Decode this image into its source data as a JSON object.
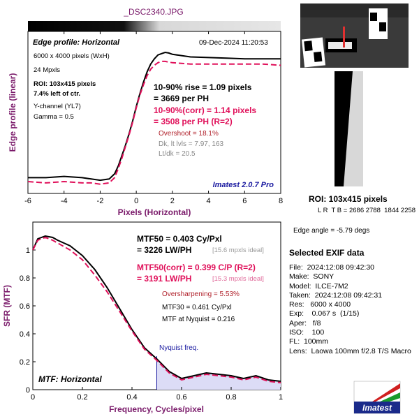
{
  "filename": "_DSC2340.JPG",
  "colors": {
    "measured": "#000000",
    "corrected": "#e0105a",
    "label_purple": "#7a1a6a",
    "accent_blue": "#1a1aa0",
    "nyquist_fill": "#dcdcf6"
  },
  "edge_panel": {
    "title": "Edge profile: Horizontal",
    "timestamp": "09-Dec-2024 11:20:53",
    "info": [
      "6000 x 4000 pixels (WxH)",
      "24 Mpxls"
    ],
    "roi_lines": [
      "ROI: 103x415 pixels",
      "7.4% left of ctr."
    ],
    "channel_lines": [
      "Y-channel  (YL7)",
      "Gamma = 0.5"
    ],
    "rise_lines": [
      "10-90% rise = 1.09 pixels",
      "= 3669 per PH"
    ],
    "corr_lines": [
      "10-90%(corr) = 1.14 pixels",
      "= 3508 per PH  (R=2)"
    ],
    "overshoot": "Overshoot = 18.1%",
    "dk_lt": "Dk, lt lvls = 7.97, 163",
    "lt_dk": "Lt/dk = 20.5",
    "version": "Imatest 2.0.7 Pro"
  },
  "mtf_panel": {
    "mtf50_lines": [
      "MTF50 = 0.403 Cy/Pxl",
      "= 3226 LW/PH"
    ],
    "mtf50_ideal": "[15.6 mpxls ideal]",
    "corr_lines": [
      "MTF50(corr) = 0.399 C/P  (R=2)",
      "= 3191 LW/PH"
    ],
    "corr_ideal": "[15.3 mpxls ideal]",
    "oversharpening": "Oversharpening = 5.53%",
    "mtf30": "MTF30 = 0.461 Cy/Pxl",
    "nyquist_value": "MTF at Nyquist = 0.216",
    "nyquist_label": "Nyquist freq.",
    "title": "MTF: Horizontal"
  },
  "right_panel": {
    "roi_title": "ROI: 103x415 pixels",
    "roi_coords": "L R  T B = 2686 2788  1844 2258",
    "edge_angle": "Edge angle = -5.79 degs",
    "exif_title": "Selected EXIF data",
    "exif": [
      "File:  2024:12:08 09:42:30",
      "Make:  SONY",
      "Model:  ILCE-7M2",
      "Taken:  2024:12:08 09:42:31",
      "Res:   6000 x 4000",
      "Exp:    0.067 s  (1/15)",
      "Aper:   f/8",
      "ISO:    100",
      "FL:  100mm",
      "Lens:  Laowa 100mm f/2.8 T/S Macro"
    ],
    "logo_text": "Imatest"
  },
  "chart_data": [
    {
      "type": "line",
      "title": "Edge profile: Horizontal",
      "xlabel": "Pixels (Horizontal)",
      "ylabel": "Edge profile (linear)",
      "xlim": [
        -6,
        8
      ],
      "ylim": [
        0,
        1
      ],
      "xticks": [
        -6,
        -4,
        -2,
        0,
        2,
        4,
        6,
        8
      ],
      "grid": false,
      "series": [
        {
          "x": [
            -6,
            -5,
            -4,
            -3,
            -2.5,
            -2,
            -1.5,
            -1.2,
            -1,
            -0.8,
            -0.6,
            -0.4,
            -0.2,
            0,
            0.2,
            0.4,
            0.6,
            0.8,
            1,
            1.2,
            1.4,
            1.6,
            1.8,
            2,
            2.5,
            3,
            4,
            5,
            6,
            7,
            8
          ],
          "y": [
            0.03,
            0.03,
            0.04,
            0.03,
            0.02,
            0.01,
            0.02,
            0.06,
            0.12,
            0.2,
            0.28,
            0.37,
            0.47,
            0.58,
            0.68,
            0.77,
            0.85,
            0.91,
            0.95,
            0.98,
            0.99,
            1.0,
            0.995,
            0.985,
            0.975,
            0.965,
            0.96,
            0.955,
            0.95,
            0.95,
            0.95
          ]
        },
        {
          "x": [
            -6,
            -5,
            -4,
            -3,
            -2.5,
            -2,
            -1.5,
            -1.2,
            -1,
            -0.8,
            -0.6,
            -0.4,
            -0.2,
            0,
            0.2,
            0.4,
            0.6,
            0.8,
            1,
            1.2,
            1.4,
            1.6,
            1.8,
            2,
            2.5,
            3,
            4,
            5,
            6,
            7,
            8
          ],
          "y": [
            0.0,
            -0.01,
            0.0,
            -0.01,
            -0.01,
            -0.02,
            -0.01,
            0.03,
            0.1,
            0.18,
            0.27,
            0.36,
            0.46,
            0.57,
            0.67,
            0.75,
            0.82,
            0.87,
            0.9,
            0.92,
            0.93,
            0.93,
            0.925,
            0.92,
            0.915,
            0.91,
            0.91,
            0.91,
            0.91,
            0.91,
            0.9
          ]
        }
      ]
    },
    {
      "type": "line",
      "title": "MTF: Horizontal",
      "xlabel": "Frequency, Cycles/pixel",
      "ylabel": "SFR (MTF)",
      "xlim": [
        0,
        1
      ],
      "ylim": [
        0,
        1.2
      ],
      "xticks": [
        0,
        0.2,
        0.4,
        0.6,
        0.8,
        1
      ],
      "yticks": [
        0,
        0.2,
        0.4,
        0.6,
        0.8,
        1
      ],
      "grid": false,
      "nyquist_x": 0.5,
      "series": [
        {
          "x": [
            0,
            0.02,
            0.05,
            0.08,
            0.1,
            0.15,
            0.2,
            0.25,
            0.3,
            0.35,
            0.4,
            0.45,
            0.5,
            0.55,
            0.6,
            0.65,
            0.7,
            0.75,
            0.8,
            0.85,
            0.9,
            0.95,
            1.0
          ],
          "y": [
            1.0,
            1.08,
            1.1,
            1.09,
            1.07,
            1.03,
            0.96,
            0.86,
            0.73,
            0.58,
            0.43,
            0.3,
            0.22,
            0.13,
            0.08,
            0.1,
            0.12,
            0.11,
            0.1,
            0.08,
            0.1,
            0.07,
            0.06
          ]
        },
        {
          "x": [
            0,
            0.02,
            0.05,
            0.08,
            0.1,
            0.15,
            0.2,
            0.25,
            0.3,
            0.35,
            0.4,
            0.45,
            0.5,
            0.55,
            0.6,
            0.65,
            0.7,
            0.75,
            0.8,
            0.85,
            0.9,
            0.95,
            1.0
          ],
          "y": [
            1.0,
            1.07,
            1.09,
            1.07,
            1.05,
            1.0,
            0.93,
            0.82,
            0.7,
            0.56,
            0.42,
            0.29,
            0.21,
            0.12,
            0.07,
            0.09,
            0.11,
            0.1,
            0.09,
            0.07,
            0.09,
            0.06,
            0.05
          ]
        }
      ]
    }
  ]
}
